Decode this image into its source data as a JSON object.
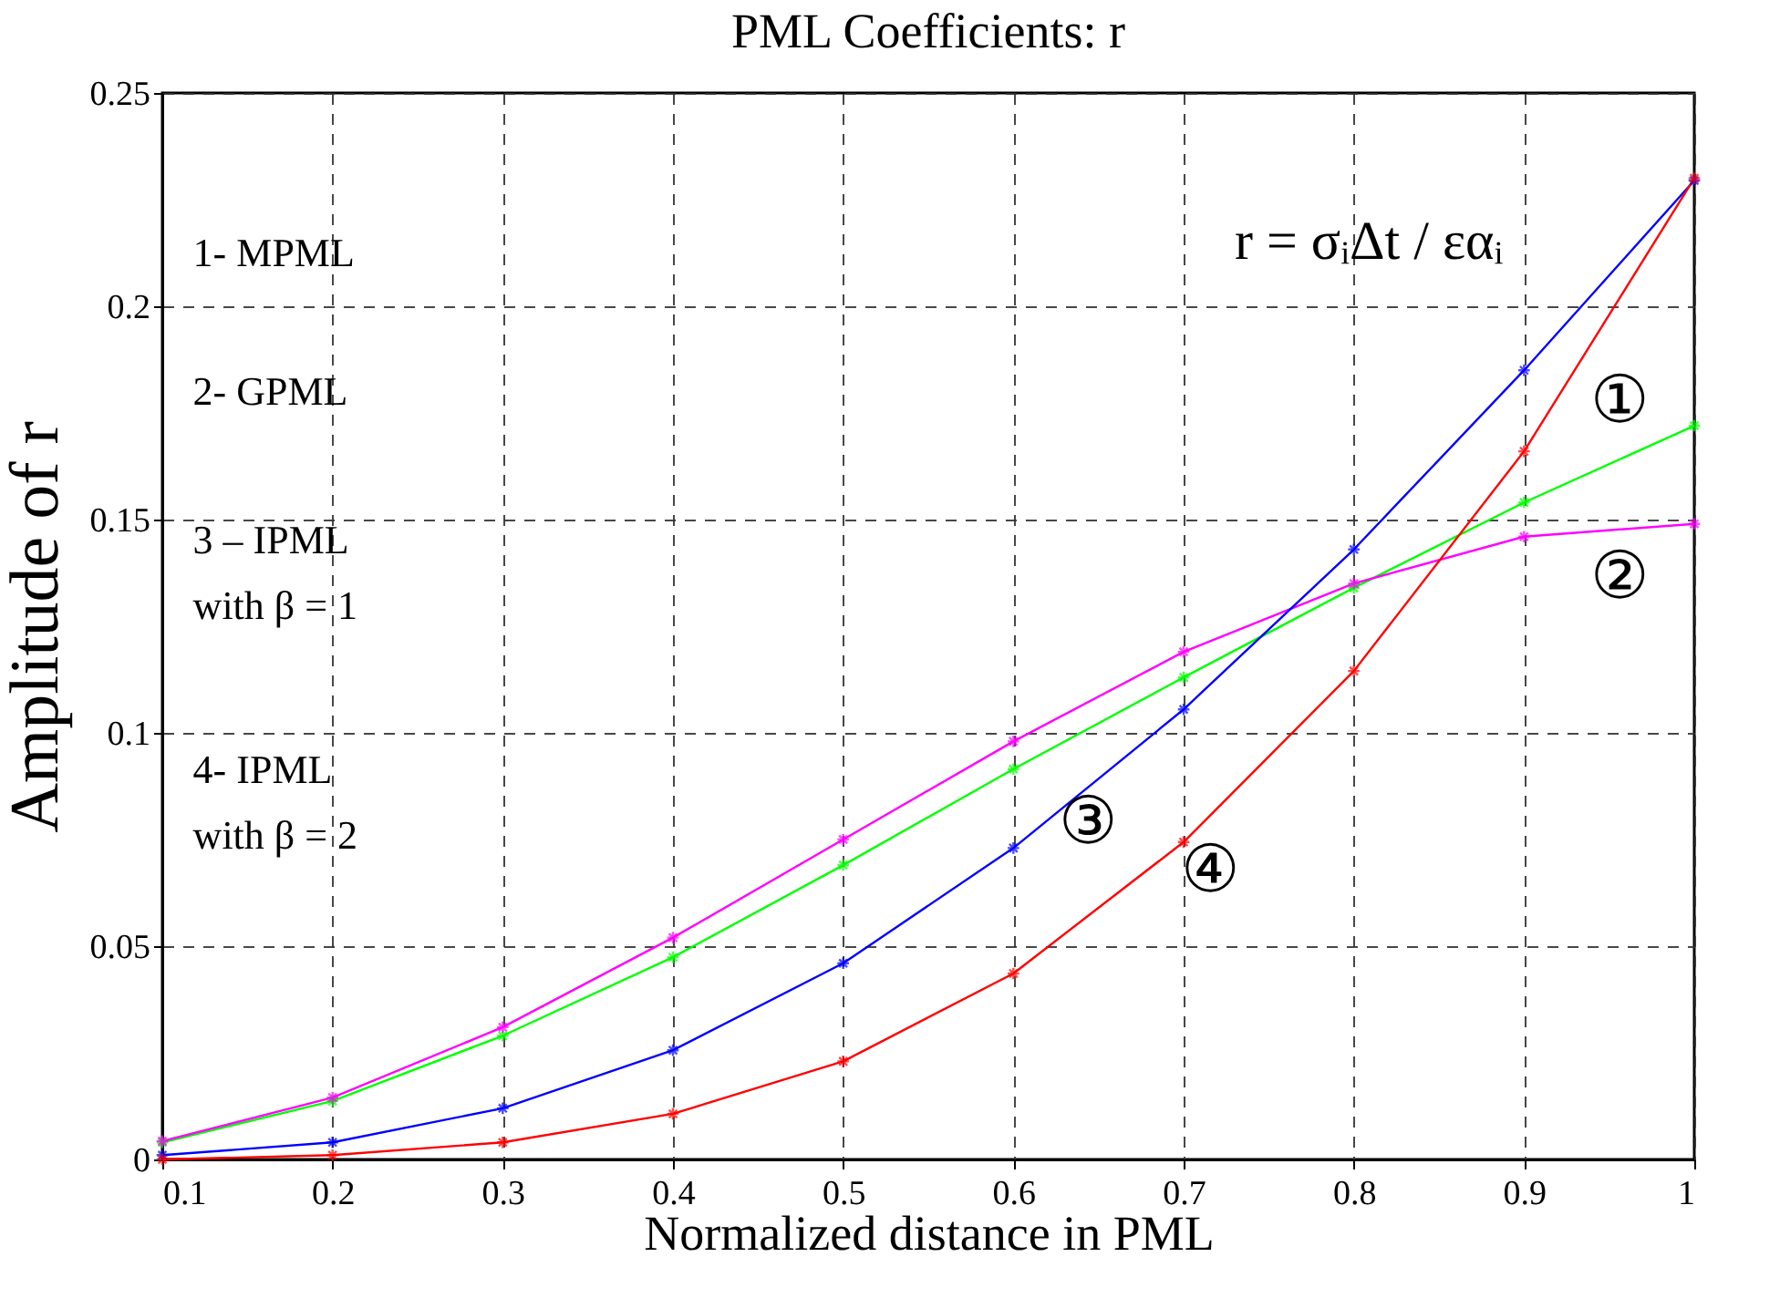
{
  "chart_data": {
    "type": "line",
    "title": "PML Coefficients: r",
    "xlabel": "Normalized distance in PML",
    "ylabel": "Amplitude of r",
    "x": [
      0.1,
      0.2,
      0.3,
      0.4,
      0.5,
      0.6,
      0.7,
      0.8,
      0.9,
      1
    ],
    "series": [
      {
        "color": "#00ff00",
        "values": [
          0.004,
          0.0137,
          0.029,
          0.0474,
          0.069,
          0.0915,
          0.113,
          0.134,
          0.154,
          0.172
        ]
      },
      {
        "color": "#ff00ff",
        "values": [
          0.0043,
          0.0145,
          0.031,
          0.052,
          0.075,
          0.098,
          0.119,
          0.135,
          0.146,
          0.149
        ]
      },
      {
        "color": "#0000ff",
        "values": [
          0.001,
          0.004,
          0.012,
          0.0256,
          0.046,
          0.073,
          0.1055,
          0.143,
          0.185,
          0.2295
        ]
      },
      {
        "color": "#ff0000",
        "values": [
          0,
          0.001,
          0.004,
          0.0107,
          0.023,
          0.0436,
          0.0744,
          0.1145,
          0.166,
          0.23
        ]
      }
    ],
    "xlim": [
      0.1,
      1
    ],
    "xticks": [
      0.1,
      0.2,
      0.3,
      0.4,
      0.5,
      0.6,
      0.7,
      0.8,
      0.9,
      1
    ],
    "ylim": [
      0,
      0.25
    ],
    "yticks": [
      0,
      0.05,
      0.1,
      0.15,
      0.2,
      0.25
    ],
    "grid": true,
    "marker": "cross",
    "legend": false,
    "annotations": [
      "1- MPML",
      "2- GPML",
      "3 –   IPML\nwith  β = 1",
      "4-   IPML\nwith  β = 2",
      "r = σᵢΔt / εαᵢ",
      "①",
      "②",
      "③",
      "④"
    ]
  }
}
